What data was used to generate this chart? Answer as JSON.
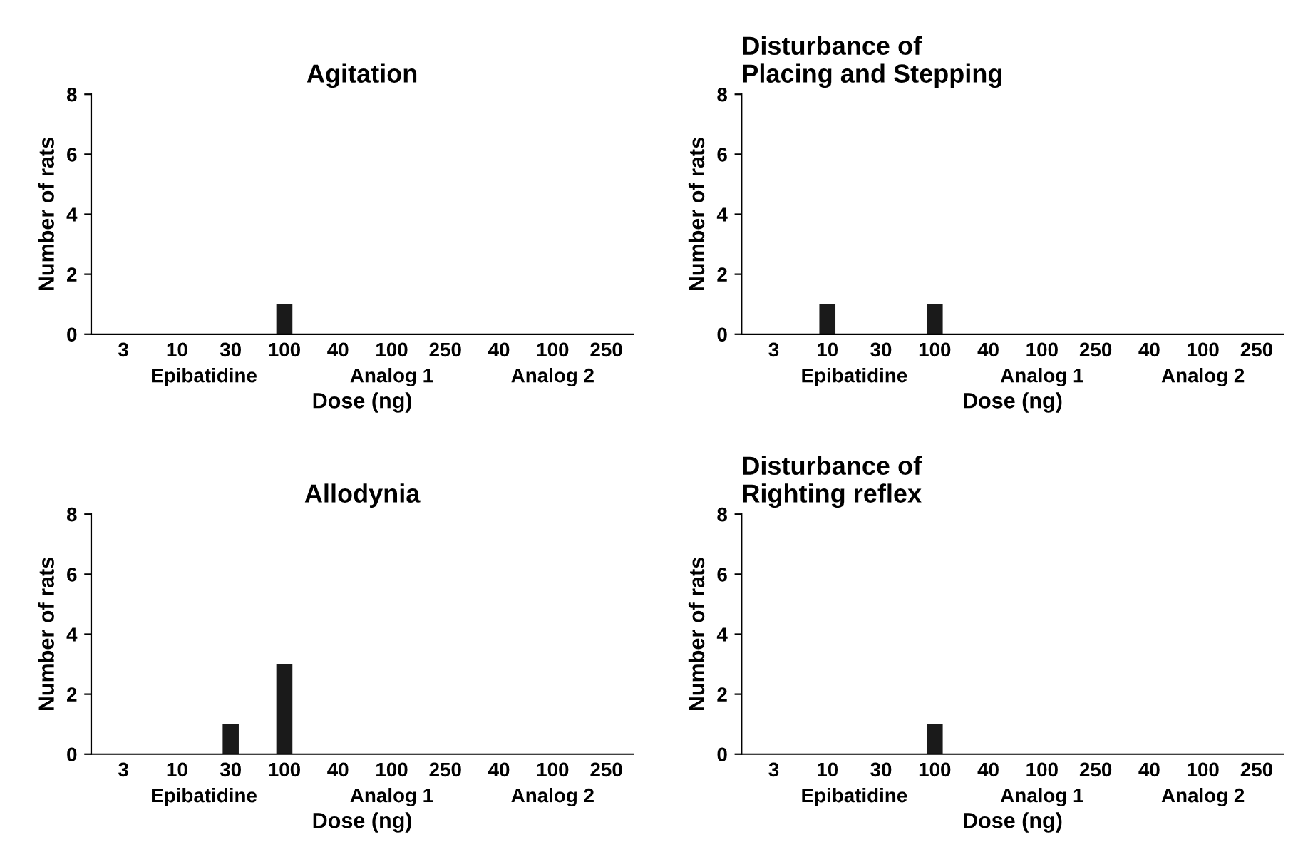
{
  "chart_data": [
    {
      "type": "bar",
      "title": "Agitation",
      "xlabel": "Dose (ng)",
      "ylabel": "Number of rats",
      "categories": [
        "3",
        "10",
        "30",
        "100",
        "40",
        "100",
        "250",
        "40",
        "100",
        "250"
      ],
      "values": [
        0,
        0,
        0,
        1,
        0,
        0,
        0,
        0,
        0,
        0
      ],
      "color": "#1a1a1a",
      "ylim": [
        0,
        8
      ],
      "yticks": [
        0,
        2,
        4,
        6,
        8
      ],
      "grid": false,
      "annotations": [
        "Epibatidine",
        "Analog 1",
        "Analog 2"
      ]
    },
    {
      "type": "bar",
      "title": "Disturbance of\nPlacing and Stepping",
      "xlabel": "Dose (ng)",
      "ylabel": "Number of rats",
      "categories": [
        "3",
        "10",
        "30",
        "100",
        "40",
        "100",
        "250",
        "40",
        "100",
        "250"
      ],
      "values": [
        0,
        1,
        0,
        1,
        0,
        0,
        0,
        0,
        0,
        0
      ],
      "color": "#1a1a1a",
      "ylim": [
        0,
        8
      ],
      "yticks": [
        0,
        2,
        4,
        6,
        8
      ],
      "grid": false,
      "annotations": [
        "Epibatidine",
        "Analog 1",
        "Analog 2"
      ]
    },
    {
      "type": "bar",
      "title": "Allodynia",
      "xlabel": "Dose (ng)",
      "ylabel": "Number of rats",
      "categories": [
        "3",
        "10",
        "30",
        "100",
        "40",
        "100",
        "250",
        "40",
        "100",
        "250"
      ],
      "values": [
        0,
        0,
        1,
        3,
        0,
        0,
        0,
        0,
        0,
        0
      ],
      "color": "#1a1a1a",
      "ylim": [
        0,
        8
      ],
      "yticks": [
        0,
        2,
        4,
        6,
        8
      ],
      "grid": false,
      "annotations": [
        "Epibatidine",
        "Analog 1",
        "Analog 2"
      ]
    },
    {
      "type": "bar",
      "title": "Disturbance of\nRighting reflex",
      "xlabel": "Dose (ng)",
      "ylabel": "Number of rats",
      "categories": [
        "3",
        "10",
        "30",
        "100",
        "40",
        "100",
        "250",
        "40",
        "100",
        "250"
      ],
      "values": [
        0,
        0,
        0,
        1,
        0,
        0,
        0,
        0,
        0,
        0
      ],
      "color": "#1a1a1a",
      "ylim": [
        0,
        8
      ],
      "yticks": [
        0,
        2,
        4,
        6,
        8
      ],
      "grid": false,
      "annotations": [
        "Epibatidine",
        "Analog 1",
        "Analog 2"
      ]
    }
  ]
}
